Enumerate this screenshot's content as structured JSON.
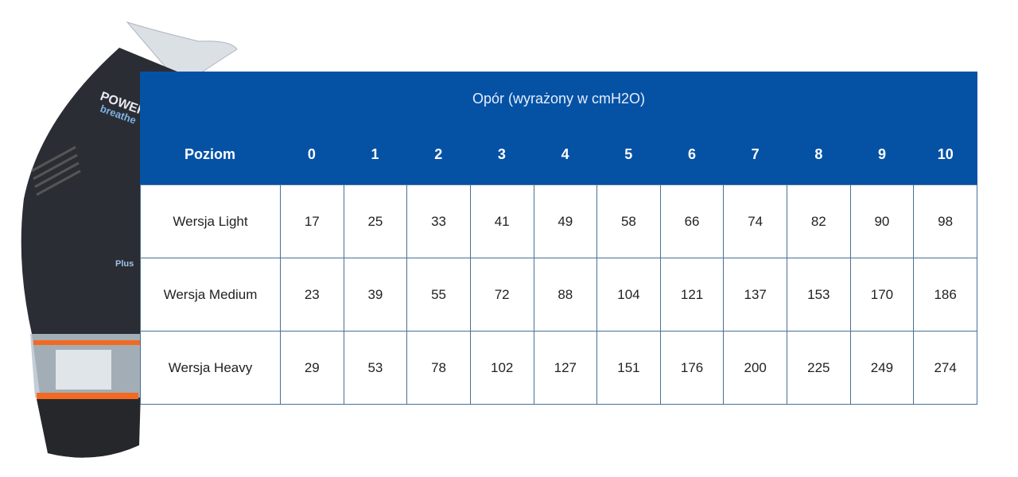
{
  "device": {
    "logo_text": "POWER breathe",
    "badge_text": "Plus",
    "colors": {
      "body": "#2a2d33",
      "accent": "#f26a21"
    }
  },
  "table": {
    "title": "Opór (wyrażony w cmH2O)",
    "header_color": "#0552a5",
    "row_header_label": "Poziom",
    "levels": [
      "0",
      "1",
      "2",
      "3",
      "4",
      "5",
      "6",
      "7",
      "8",
      "9",
      "10"
    ],
    "rows": [
      {
        "label": "Wersja Light",
        "values": [
          "17",
          "25",
          "33",
          "41",
          "49",
          "58",
          "66",
          "74",
          "82",
          "90",
          "98"
        ]
      },
      {
        "label": "Wersja Medium",
        "values": [
          "23",
          "39",
          "55",
          "72",
          "88",
          "104",
          "121",
          "137",
          "153",
          "170",
          "186"
        ]
      },
      {
        "label": "Wersja Heavy",
        "values": [
          "29",
          "53",
          "78",
          "102",
          "127",
          "151",
          "176",
          "200",
          "225",
          "249",
          "274"
        ]
      }
    ]
  }
}
